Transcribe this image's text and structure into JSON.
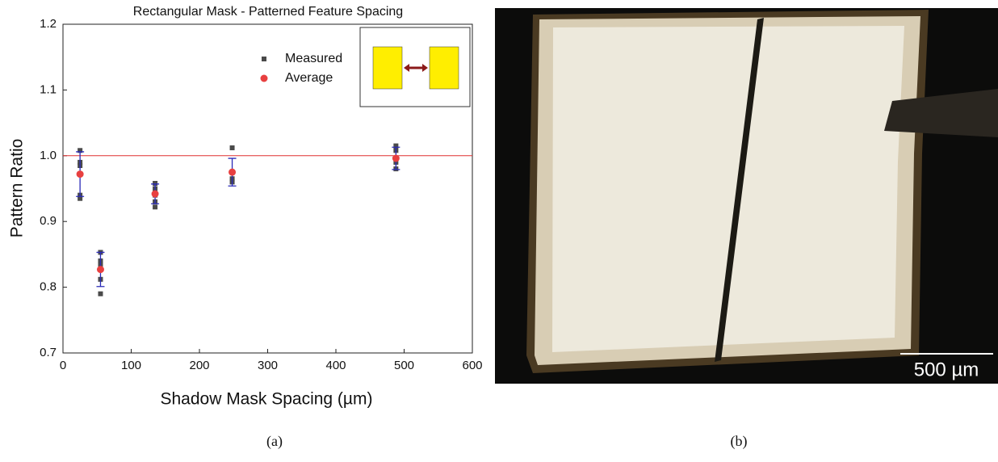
{
  "chart_data": {
    "type": "scatter",
    "title": "Rectangular Mask - Patterned Feature Spacing",
    "x_label": "Shadow Mask Spacing (µm)",
    "y_label": "Pattern Ratio",
    "xlim": [
      0,
      600
    ],
    "xticks": [
      0,
      100,
      200,
      300,
      400,
      500,
      600
    ],
    "ylim": [
      0.7,
      1.2
    ],
    "yticks": [
      0.7,
      0.8,
      0.9,
      {
        "value": 1,
        "label": "1.0"
      },
      1.1,
      1.2
    ],
    "reference_line": 1,
    "reference_color": "#e03030",
    "series": [
      {
        "name": "Measured",
        "color": "#4a4a4a",
        "marker": "square",
        "x": [
          25,
          25,
          25,
          25,
          25,
          55,
          55,
          55,
          55,
          55,
          135,
          135,
          135,
          135,
          135,
          248,
          248,
          248,
          248,
          488,
          488,
          488,
          488
        ],
        "values": [
          1.008,
          0.99,
          0.985,
          0.94,
          0.935,
          0.853,
          0.84,
          0.835,
          0.812,
          0.79,
          0.958,
          0.95,
          0.94,
          0.93,
          0.922,
          1.012,
          0.975,
          0.965,
          0.96,
          1.015,
          1.008,
          0.99,
          0.98
        ]
      },
      {
        "name": "Average",
        "color": "#e84040",
        "marker": "circle",
        "error_color": "#2a2ab8",
        "x": [
          25,
          55,
          135,
          248,
          488
        ],
        "values": [
          0.972,
          0.827,
          0.942,
          0.975,
          0.996
        ],
        "errors": [
          0.034,
          0.026,
          0.015,
          0.021,
          0.017
        ]
      }
    ]
  },
  "figure": {
    "captions": [
      "(a)",
      "(b)"
    ],
    "scale_bar": "500 µm"
  }
}
